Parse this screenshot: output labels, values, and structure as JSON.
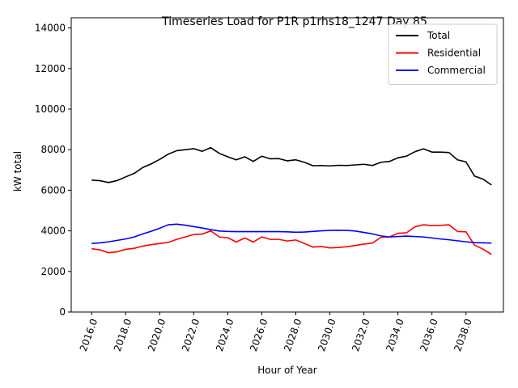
{
  "chart_data": {
    "type": "line",
    "title": "Timeseries Load for P1R p1rhs18_1247  Day 85",
    "xlabel": "Hour of Year",
    "ylabel": "kW total",
    "xlim": [
      2014.8,
      2040.2
    ],
    "ylim": [
      0,
      14500
    ],
    "x_ticks": [
      2016,
      2018,
      2020,
      2022,
      2024,
      2026,
      2028,
      2030,
      2032,
      2034,
      2036,
      2038
    ],
    "x_tick_labels": [
      "2016.0",
      "2018.0",
      "2020.0",
      "2022.0",
      "2024.0",
      "2026.0",
      "2028.0",
      "2030.0",
      "2032.0",
      "2034.0",
      "2036.0",
      "2038.0"
    ],
    "y_ticks": [
      0,
      2000,
      4000,
      6000,
      8000,
      10000,
      12000,
      14000
    ],
    "y_tick_labels": [
      "0",
      "2000",
      "4000",
      "6000",
      "8000",
      "10000",
      "12000",
      "14000"
    ],
    "legend_position": "top-right",
    "x": [
      2016,
      2016.5,
      2017,
      2017.5,
      2018,
      2018.5,
      2019,
      2019.5,
      2020,
      2020.5,
      2021,
      2021.5,
      2022,
      2022.5,
      2023,
      2023.5,
      2024,
      2024.5,
      2025,
      2025.5,
      2026,
      2026.5,
      2027,
      2027.5,
      2028,
      2028.5,
      2029,
      2029.5,
      2030,
      2030.5,
      2031,
      2031.5,
      2032,
      2032.5,
      2033,
      2033.5,
      2034,
      2034.5,
      2035,
      2035.5,
      2036,
      2036.5,
      2037,
      2037.5,
      2038,
      2038.5,
      2039,
      2039.5
    ],
    "series": [
      {
        "name": "Total",
        "color": "#000000",
        "values": [
          6500,
          6470,
          6380,
          6480,
          6660,
          6830,
          7120,
          7300,
          7520,
          7780,
          7950,
          8000,
          8050,
          7920,
          8100,
          7820,
          7650,
          7500,
          7650,
          7420,
          7680,
          7550,
          7560,
          7450,
          7500,
          7380,
          7210,
          7220,
          7200,
          7230,
          7220,
          7250,
          7280,
          7220,
          7380,
          7420,
          7600,
          7680,
          7900,
          8040,
          7880,
          7880,
          7860,
          7500,
          7400,
          6700,
          6550,
          6260
        ]
      },
      {
        "name": "Residential",
        "color": "#ff0000",
        "values": [
          3120,
          3060,
          2920,
          2970,
          3090,
          3140,
          3250,
          3320,
          3380,
          3430,
          3580,
          3700,
          3820,
          3840,
          4000,
          3700,
          3660,
          3450,
          3650,
          3450,
          3700,
          3580,
          3580,
          3500,
          3550,
          3380,
          3200,
          3230,
          3160,
          3180,
          3220,
          3280,
          3350,
          3400,
          3680,
          3700,
          3880,
          3900,
          4200,
          4300,
          4260,
          4270,
          4300,
          3970,
          3950,
          3300,
          3100,
          2840
        ]
      },
      {
        "name": "Commercial",
        "color": "#0000ff",
        "values": [
          3380,
          3410,
          3460,
          3530,
          3600,
          3700,
          3850,
          3980,
          4130,
          4300,
          4330,
          4280,
          4210,
          4140,
          4060,
          3990,
          3970,
          3960,
          3960,
          3960,
          3960,
          3960,
          3960,
          3950,
          3930,
          3940,
          3970,
          4000,
          4020,
          4030,
          4020,
          3990,
          3920,
          3850,
          3750,
          3700,
          3720,
          3740,
          3720,
          3700,
          3650,
          3600,
          3560,
          3510,
          3460,
          3420,
          3410,
          3400
        ]
      }
    ]
  }
}
